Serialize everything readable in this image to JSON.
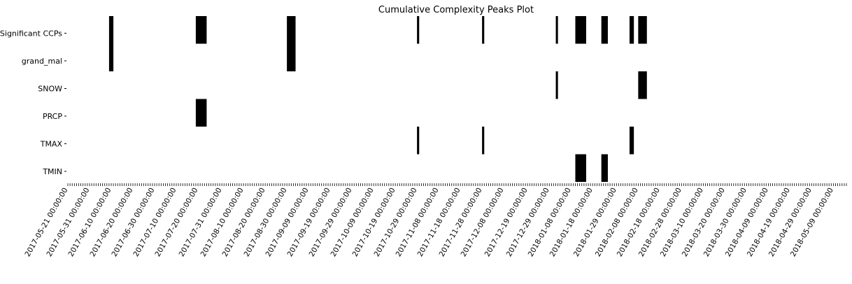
{
  "chart_data": {
    "type": "heatmap",
    "title": "Cumulative Complexity Peaks Plot",
    "rows": [
      "Significant CCPs",
      "grand_mal",
      "SNOW",
      "PRCP",
      "TMAX",
      "TMIN"
    ],
    "x_start": "2017-05-21",
    "x_end": "2018-05-15",
    "x_tick_labels": [
      "2017-05-21 00:00:00",
      "2017-05-31 00:00:00",
      "2017-06-10 00:00:00",
      "2017-06-20 00:00:00",
      "2017-06-30 00:00:00",
      "2017-07-10 00:00:00",
      "2017-07-20 00:00:00",
      "2017-07-31 00:00:00",
      "2017-08-10 00:00:00",
      "2017-08-20 00:00:00",
      "2017-08-30 00:00:00",
      "2017-09-09 00:00:00",
      "2017-09-19 00:00:00",
      "2017-09-29 00:00:00",
      "2017-10-09 00:00:00",
      "2017-10-19 00:00:00",
      "2017-10-29 00:00:00",
      "2017-11-08 00:00:00",
      "2017-11-18 00:00:00",
      "2017-11-28 00:00:00",
      "2017-12-08 00:00:00",
      "2017-12-19 00:00:00",
      "2017-12-29 00:00:00",
      "2018-01-08 00:00:00",
      "2018-01-18 00:00:00",
      "2018-01-29 00:00:00",
      "2018-02-08 00:00:00",
      "2018-02-18 00:00:00",
      "2018-02-28 00:00:00",
      "2018-03-10 00:00:00",
      "2018-03-20 00:00:00",
      "2018-03-30 00:00:00",
      "2018-04-09 00:00:00",
      "2018-04-19 00:00:00",
      "2018-04-29 00:00:00",
      "2018-05-09 00:00:00"
    ],
    "peaks": {
      "Significant CCPs": [
        [
          "2017-06-09",
          "2017-06-11"
        ],
        [
          "2017-07-19",
          "2017-07-24"
        ],
        [
          "2017-08-30",
          "2017-09-03"
        ],
        [
          "2017-10-29",
          "2017-10-30"
        ],
        [
          "2017-11-28",
          "2017-11-29"
        ],
        [
          "2018-01-01",
          "2018-01-02"
        ],
        [
          "2018-01-10",
          "2018-01-15"
        ],
        [
          "2018-01-22",
          "2018-01-25"
        ],
        [
          "2018-02-04",
          "2018-02-06"
        ],
        [
          "2018-02-08",
          "2018-02-12"
        ]
      ],
      "grand_mal": [
        [
          "2017-06-09",
          "2017-06-11"
        ],
        [
          "2017-08-30",
          "2017-09-03"
        ]
      ],
      "SNOW": [
        [
          "2018-01-01",
          "2018-01-02"
        ],
        [
          "2018-02-08",
          "2018-02-12"
        ]
      ],
      "PRCP": [
        [
          "2017-07-19",
          "2017-07-24"
        ]
      ],
      "TMAX": [
        [
          "2017-10-29",
          "2017-10-30"
        ],
        [
          "2017-11-28",
          "2017-11-29"
        ],
        [
          "2018-02-04",
          "2018-02-06"
        ]
      ],
      "TMIN": [
        [
          "2018-01-10",
          "2018-01-15"
        ],
        [
          "2018-01-22",
          "2018-01-25"
        ]
      ]
    },
    "fill_color": "#000000",
    "grid": false,
    "legend": false
  }
}
